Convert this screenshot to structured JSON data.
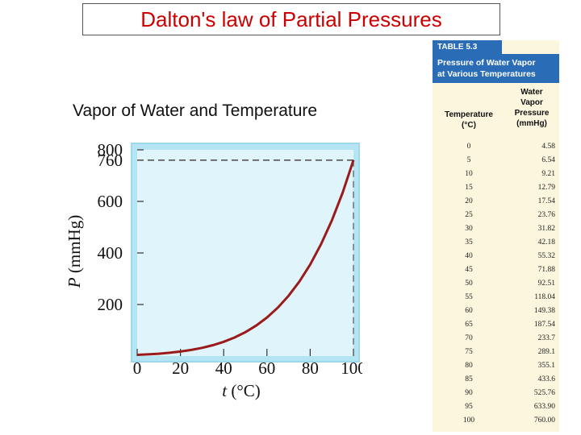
{
  "header": {
    "title": "Dalton's law of Partial Pressures"
  },
  "subtitle": "Vapor of Water and Temperature",
  "chart_data": {
    "type": "line",
    "xlabel_italic": "t",
    "xlabel_rest": " (°C)",
    "ylabel_italic": "P",
    "ylabel_rest": " (mmHg)",
    "xlim": [
      0,
      100
    ],
    "ylim": [
      0,
      800
    ],
    "xticks": [
      "0",
      "20",
      "40",
      "60",
      "80",
      "100"
    ],
    "yticks": [
      "200",
      "400",
      "600",
      "760",
      "800"
    ],
    "reference_level": 760,
    "series": [
      {
        "x": [
          0,
          5,
          10,
          15,
          20,
          25,
          30,
          35,
          40,
          45,
          50,
          55,
          60,
          65,
          70,
          75,
          80,
          85,
          90,
          95,
          100
        ],
        "y": [
          4.58,
          6.54,
          9.21,
          12.79,
          17.54,
          23.76,
          31.82,
          42.18,
          55.32,
          71.88,
          92.51,
          118.04,
          149.38,
          187.54,
          233.7,
          289.1,
          355.1,
          433.6,
          525.76,
          633.9,
          760.0
        ]
      }
    ],
    "colors": {
      "curve": "#9b1a1a",
      "plot_bg": "#dff4fb",
      "frame": "#a9dff0",
      "dashed": "#555555"
    }
  },
  "table": {
    "label": "TABLE 5.3",
    "caption_line1": "Pressure of Water Vapor",
    "caption_line2": "at Various Temperatures",
    "col1_line1": "Temperature",
    "col1_line2": "(°C)",
    "col2_line1": "Water",
    "col2_line2": "Vapor",
    "col2_line3": "Pressure",
    "col2_line4": "(mmHg)",
    "rows": [
      [
        "0",
        "4.58"
      ],
      [
        "5",
        "6.54"
      ],
      [
        "10",
        "9.21"
      ],
      [
        "15",
        "12.79"
      ],
      [
        "20",
        "17.54"
      ],
      [
        "25",
        "23.76"
      ],
      [
        "30",
        "31.82"
      ],
      [
        "35",
        "42.18"
      ],
      [
        "40",
        "55.32"
      ],
      [
        "45",
        "71.88"
      ],
      [
        "50",
        "92.51"
      ],
      [
        "55",
        "118.04"
      ],
      [
        "60",
        "149.38"
      ],
      [
        "65",
        "187.54"
      ],
      [
        "70",
        "233.7"
      ],
      [
        "75",
        "289.1"
      ],
      [
        "80",
        "355.1"
      ],
      [
        "85",
        "433.6"
      ],
      [
        "90",
        "525.76"
      ],
      [
        "95",
        "633.90"
      ],
      [
        "100",
        "760.00"
      ]
    ]
  }
}
